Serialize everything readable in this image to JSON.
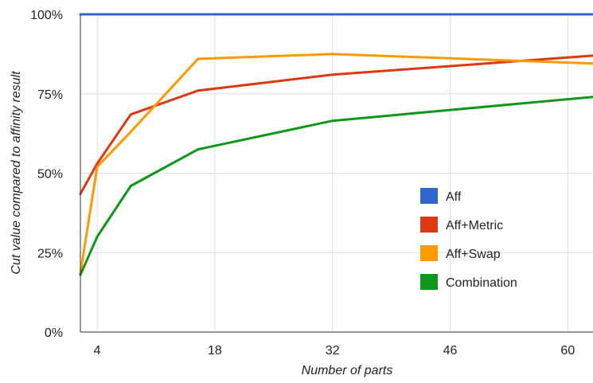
{
  "chart_data": {
    "type": "line",
    "title": "",
    "xlabel": "Number of parts",
    "ylabel": "Cut value compared to affinity result",
    "x_ticks": [
      4,
      18,
      32,
      46,
      60
    ],
    "x_tick_labels": [
      "4",
      "18",
      "32",
      "46",
      "60"
    ],
    "xlim": [
      2,
      63
    ],
    "y_ticks": [
      0,
      25,
      50,
      75,
      100
    ],
    "y_tick_labels": [
      "0%",
      "25%",
      "50%",
      "75%",
      "100%"
    ],
    "ylim": [
      0,
      100
    ],
    "grid": true,
    "legend_position": "right",
    "series": [
      {
        "name": "Aff",
        "color": "#3366cc",
        "x": [
          2,
          4,
          8,
          16,
          32,
          63
        ],
        "y": [
          100,
          100,
          100,
          100,
          100,
          100
        ]
      },
      {
        "name": "Aff+Metric",
        "color": "#dc3912",
        "x": [
          2,
          4,
          8,
          16,
          32,
          63
        ],
        "y": [
          43.5,
          53,
          68.5,
          76,
          81,
          87
        ]
      },
      {
        "name": "Aff+Swap",
        "color": "#ff9900",
        "x": [
          2,
          4,
          8,
          16,
          32,
          63
        ],
        "y": [
          18.5,
          52,
          63,
          86,
          87.5,
          84.5
        ]
      },
      {
        "name": "Combination",
        "color": "#109618",
        "x": [
          2,
          4,
          8,
          16,
          32,
          63
        ],
        "y": [
          18,
          30,
          46,
          57.5,
          66.5,
          74
        ]
      }
    ]
  }
}
